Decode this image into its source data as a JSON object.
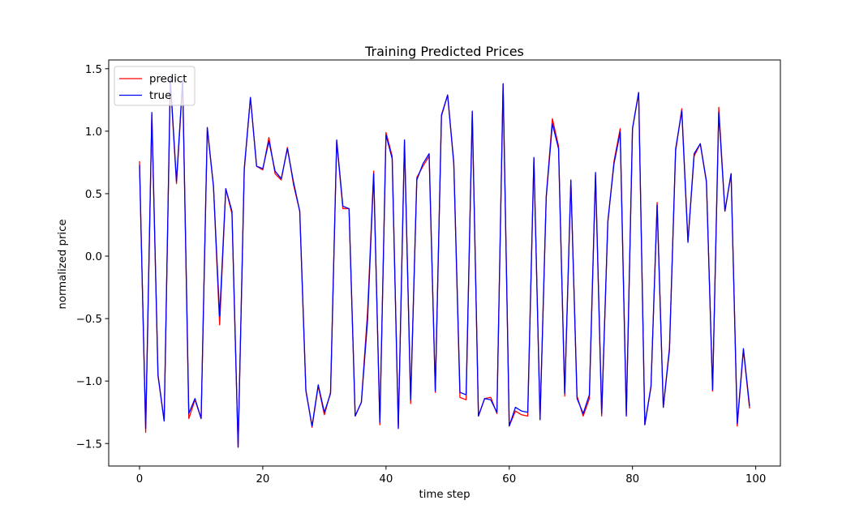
{
  "chart_data": {
    "type": "line",
    "title": "Training Predicted Prices",
    "xlabel": "time step",
    "ylabel": "normalized price",
    "xlim": [
      -5,
      104
    ],
    "ylim": [
      -1.68,
      1.57
    ],
    "xticks": [
      0,
      20,
      40,
      60,
      80,
      100
    ],
    "yticks": [
      -1.5,
      -1.0,
      -0.5,
      0.0,
      0.5,
      1.0,
      1.5
    ],
    "xtick_labels": [
      "0",
      "20",
      "40",
      "60",
      "80",
      "100"
    ],
    "ytick_labels": [
      "−1.5",
      "−1.0",
      "−0.5",
      "0.0",
      "0.5",
      "1.0",
      "1.5"
    ],
    "grid": false,
    "legend_position": "upper-left",
    "x": [
      0,
      1,
      2,
      3,
      4,
      5,
      6,
      7,
      8,
      9,
      10,
      11,
      12,
      13,
      14,
      15,
      16,
      17,
      18,
      19,
      20,
      21,
      22,
      23,
      24,
      25,
      26,
      27,
      28,
      29,
      30,
      31,
      32,
      33,
      34,
      35,
      36,
      37,
      38,
      39,
      40,
      41,
      42,
      43,
      44,
      45,
      46,
      47,
      48,
      49,
      50,
      51,
      52,
      53,
      54,
      55,
      56,
      57,
      58,
      59,
      60,
      61,
      62,
      63,
      64,
      65,
      66,
      67,
      68,
      69,
      70,
      71,
      72,
      73,
      74,
      75,
      76,
      77,
      78,
      79,
      80,
      81,
      82,
      83,
      84,
      85,
      86,
      87,
      88,
      89,
      90,
      91,
      92,
      93,
      94,
      95,
      96,
      97,
      98,
      99
    ],
    "series": [
      {
        "name": "predict",
        "color": "#ff0000",
        "values": [
          0.76,
          -1.41,
          1.13,
          -0.96,
          -1.32,
          1.4,
          0.58,
          1.39,
          -1.3,
          -1.15,
          -1.3,
          1.02,
          0.56,
          -0.55,
          0.54,
          0.34,
          -1.53,
          0.69,
          1.27,
          0.72,
          0.69,
          0.95,
          0.66,
          0.61,
          0.87,
          0.57,
          0.36,
          -1.07,
          -1.37,
          -1.04,
          -1.27,
          -1.09,
          0.92,
          0.38,
          0.38,
          -1.28,
          -1.17,
          -0.45,
          0.68,
          -1.35,
          0.99,
          0.8,
          -1.37,
          0.92,
          -1.18,
          0.63,
          0.72,
          0.8,
          -1.09,
          1.12,
          1.29,
          0.74,
          -1.13,
          -1.15,
          1.15,
          -1.28,
          -1.14,
          -1.13,
          -1.26,
          1.38,
          -1.36,
          -1.24,
          -1.27,
          -1.28,
          0.78,
          -1.3,
          0.48,
          1.1,
          0.88,
          -1.12,
          0.6,
          -1.12,
          -1.28,
          -1.14,
          0.65,
          -1.28,
          0.27,
          0.76,
          1.02,
          -1.27,
          1.02,
          1.31,
          -1.35,
          -1.05,
          0.43,
          -1.21,
          -0.73,
          0.84,
          1.18,
          0.12,
          0.8,
          0.9,
          0.59,
          -1.08,
          1.19,
          0.36,
          0.66,
          -1.36,
          -0.75,
          -1.22
        ]
      },
      {
        "name": "true",
        "color": "#0000ff",
        "values": [
          0.73,
          -1.38,
          1.15,
          -0.95,
          -1.32,
          1.42,
          0.6,
          1.41,
          -1.26,
          -1.14,
          -1.3,
          1.03,
          0.56,
          -0.48,
          0.54,
          0.36,
          -1.53,
          0.7,
          1.27,
          0.72,
          0.7,
          0.92,
          0.68,
          0.62,
          0.86,
          0.59,
          0.36,
          -1.08,
          -1.36,
          -1.03,
          -1.25,
          -1.1,
          0.93,
          0.4,
          0.38,
          -1.28,
          -1.17,
          -0.52,
          0.66,
          -1.33,
          0.97,
          0.78,
          -1.38,
          0.93,
          -1.15,
          0.61,
          0.74,
          0.82,
          -1.08,
          1.13,
          1.29,
          0.75,
          -1.09,
          -1.11,
          1.16,
          -1.28,
          -1.14,
          -1.15,
          -1.25,
          1.38,
          -1.36,
          -1.21,
          -1.24,
          -1.25,
          0.79,
          -1.31,
          0.47,
          1.06,
          0.86,
          -1.1,
          0.61,
          -1.14,
          -1.26,
          -1.11,
          0.67,
          -1.26,
          0.28,
          0.74,
          0.99,
          -1.28,
          1.02,
          1.31,
          -1.35,
          -1.04,
          0.41,
          -1.21,
          -0.75,
          0.86,
          1.16,
          0.11,
          0.82,
          0.9,
          0.6,
          -1.07,
          1.15,
          0.36,
          0.66,
          -1.34,
          -0.74,
          -1.2
        ]
      }
    ]
  }
}
